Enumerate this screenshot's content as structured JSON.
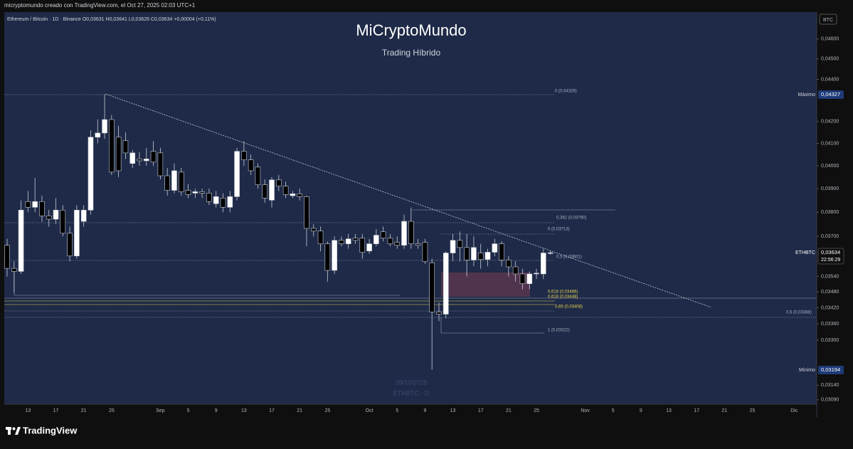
{
  "header": "micryptomundo creado con TradingView.com, el Oct 27, 2025 02:03 UTC+1",
  "footer": "TradingView",
  "chart_data": {
    "type": "candlestick",
    "symbol_line": "Ethereum / Bitcoin · 1D · Binance  O0,03631  H0,03641  L0,03626  C0,03634  +0,00004 (+0,11%)",
    "title": "MiCryptoMundo",
    "subtitle": "Trading Híbrido",
    "axis_unit": "BTC",
    "watermark": [
      "28/10/2025",
      "ETHBTC · D"
    ],
    "log_scale": true,
    "up_color": "#ffffff",
    "down_color": "#000000",
    "ylim": [
      0.03075,
      0.04735
    ],
    "yticks": [
      {
        "value": 0.046,
        "label": "0,04600"
      },
      {
        "value": 0.045,
        "label": "0,04500"
      },
      {
        "value": 0.044,
        "label": "0,04400"
      },
      {
        "value": 0.042,
        "label": "0,04200"
      },
      {
        "value": 0.041,
        "label": "0,04100"
      },
      {
        "value": 0.04,
        "label": "0,04000"
      },
      {
        "value": 0.039,
        "label": "0,03900"
      },
      {
        "value": 0.038,
        "label": "0,03800"
      },
      {
        "value": 0.037,
        "label": "0,03700"
      },
      {
        "value": 0.0354,
        "label": "0,03540"
      },
      {
        "value": 0.0348,
        "label": "0,03480"
      },
      {
        "value": 0.0342,
        "label": "0,03420"
      },
      {
        "value": 0.0336,
        "label": "0,03360"
      },
      {
        "value": 0.033,
        "label": "0,03300"
      },
      {
        "value": 0.0314,
        "label": "0,03140"
      },
      {
        "value": 0.0309,
        "label": "0,03090"
      }
    ],
    "categories": [
      null,
      null,
      null,
      "13",
      null,
      null,
      null,
      "17",
      null,
      null,
      null,
      "21",
      null,
      null,
      null,
      "25",
      null,
      null,
      null,
      null,
      null,
      null,
      "Sep",
      null,
      null,
      null,
      "5",
      null,
      null,
      null,
      "9",
      null,
      null,
      null,
      "13",
      null,
      null,
      null,
      "17",
      null,
      null,
      null,
      "21",
      null,
      null,
      null,
      "25",
      null,
      null,
      null,
      null,
      null,
      "Oct",
      null,
      null,
      null,
      "5",
      null,
      null,
      null,
      "9",
      null,
      null,
      null,
      "13",
      null,
      null,
      null,
      "17",
      null,
      null,
      null,
      "21",
      null,
      null,
      null,
      "25",
      null,
      null,
      null,
      null,
      null,
      null,
      "Nov",
      null,
      null,
      null,
      "5",
      null,
      null,
      null,
      "9",
      null,
      null,
      null,
      "13",
      null,
      null,
      null,
      "17",
      null,
      null,
      null,
      "21",
      null,
      null,
      null,
      "25",
      null,
      null,
      null,
      null,
      null,
      "Dic"
    ],
    "open": [
      0.03664,
      0.03572,
      0.0356,
      0.03845,
      0.03821,
      0.03845,
      0.03785,
      0.03771,
      0.03809,
      0.03713,
      0.03621,
      0.03762,
      0.03809,
      0.04128,
      0.04147,
      0.04209,
      0.04128,
      0.04112,
      0.0401,
      0.0403,
      0.04022,
      0.04064,
      0.04057,
      0.03956,
      0.03893,
      0.03972,
      0.03893,
      0.03881,
      0.03887,
      0.03881,
      0.03836,
      0.0386,
      0.03821,
      0.03866,
      0.04064,
      0.04026,
      0.03994,
      0.03917,
      0.03851,
      0.03938,
      0.03911,
      0.0387,
      0.03878,
      0.03866,
      0.03733,
      0.03722,
      0.0367,
      0.03564,
      0.03684,
      0.0367,
      0.03693,
      0.03693,
      0.03641,
      0.0367,
      0.03719,
      0.03693,
      0.03676,
      0.03664,
      0.03762,
      0.0367,
      0.03676,
      0.03594,
      0.03404,
      0.03396,
      0.03633,
      0.03684,
      0.03655,
      0.03605,
      0.03633,
      0.03607,
      0.03636,
      0.0367,
      0.03605,
      0.03578,
      0.0355,
      0.03512,
      0.0355,
      0.0355,
      0.03631,
      null,
      null,
      null,
      null,
      null,
      null,
      null,
      null,
      null,
      null,
      null,
      null,
      null,
      null,
      null,
      null,
      null,
      null,
      null,
      null,
      null,
      null,
      null,
      null,
      null,
      null,
      null,
      null,
      null,
      null,
      null,
      null,
      null,
      null,
      null
    ],
    "high": [
      0.0369,
      0.036,
      0.0385,
      0.0389,
      0.03947,
      0.0387,
      0.0381,
      0.0386,
      0.0383,
      0.0374,
      0.0383,
      0.0383,
      0.0416,
      0.0421,
      0.04327,
      0.0423,
      0.0418,
      0.0415,
      0.0407,
      0.0406,
      0.0408,
      0.0411,
      0.0408,
      0.0399,
      0.0401,
      0.0399,
      0.0392,
      0.039,
      0.039,
      0.039,
      0.0389,
      0.0388,
      0.0389,
      0.0408,
      0.0411,
      0.0405,
      0.0401,
      0.0394,
      0.0395,
      0.0396,
      0.0393,
      0.0389,
      0.039,
      0.0387,
      0.0375,
      0.0374,
      0.0368,
      0.037,
      0.037,
      0.0371,
      0.0371,
      0.0371,
      0.0369,
      0.0373,
      0.0374,
      0.0371,
      0.037,
      0.0379,
      0.0382,
      0.0369,
      0.0369,
      0.0361,
      0.0344,
      0.0364,
      0.0371,
      0.0372,
      0.0371,
      0.037,
      0.0367,
      0.0365,
      0.0369,
      0.0368,
      0.0362,
      0.036,
      0.0357,
      0.0356,
      0.0357,
      0.0365,
      0.03641,
      null,
      null,
      null,
      null,
      null,
      null,
      null,
      null,
      null,
      null,
      null,
      null,
      null,
      null,
      null,
      null,
      null,
      null,
      null,
      null,
      null,
      null,
      null,
      null,
      null,
      null,
      null,
      null,
      null,
      null,
      null,
      null,
      null,
      null,
      null
    ],
    "low": [
      0.0354,
      0.03478,
      0.0355,
      0.038,
      0.038,
      0.0376,
      0.0374,
      0.0375,
      0.037,
      0.036,
      0.0361,
      0.0374,
      0.0379,
      0.041,
      0.0412,
      0.0396,
      0.0395,
      0.0403,
      0.0399,
      0.04,
      0.04,
      0.04,
      0.0394,
      0.0387,
      0.0388,
      0.0387,
      0.0386,
      0.0386,
      0.0386,
      0.0383,
      0.0382,
      0.038,
      0.038,
      0.0385,
      0.04,
      0.0396,
      0.039,
      0.0384,
      0.0382,
      0.0389,
      0.0386,
      0.0386,
      0.0385,
      0.0366,
      0.037,
      0.0364,
      0.0352,
      0.0355,
      0.0366,
      0.0365,
      0.0367,
      0.0361,
      0.0363,
      0.0366,
      0.0368,
      0.0366,
      0.0365,
      0.0365,
      0.0365,
      0.0365,
      0.0359,
      0.03194,
      0.0337,
      0.0338,
      0.036,
      0.036,
      0.0354,
      0.0358,
      0.0357,
      0.0358,
      0.0362,
      0.0358,
      0.0354,
      0.0352,
      0.0349,
      0.0349,
      0.0353,
      0.0353,
      0.03626,
      null,
      null,
      null,
      null,
      null,
      null,
      null,
      null,
      null,
      null,
      null,
      null,
      null,
      null,
      null,
      null,
      null,
      null,
      null,
      null,
      null,
      null,
      null,
      null,
      null,
      null,
      null,
      null,
      null,
      null,
      null,
      null,
      null,
      null,
      null
    ],
    "close": [
      0.03572,
      0.0356,
      0.03809,
      0.03821,
      0.03845,
      0.03785,
      0.03771,
      0.03809,
      0.03713,
      0.03621,
      0.03809,
      0.03809,
      0.04128,
      0.04147,
      0.04209,
      0.03972,
      0.03978,
      0.04057,
      0.04057,
      0.04022,
      0.0403,
      0.04016,
      0.03956,
      0.03893,
      0.03978,
      0.03887,
      0.03875,
      0.03887,
      0.03881,
      0.03845,
      0.03866,
      0.03821,
      0.03866,
      0.04064,
      0.04026,
      0.03978,
      0.03917,
      0.0386,
      0.03938,
      0.03911,
      0.03875,
      0.03878,
      0.03866,
      0.03733,
      0.03722,
      0.0367,
      0.03564,
      0.03684,
      0.0367,
      0.0369,
      0.03684,
      0.03636,
      0.0367,
      0.03705,
      0.03693,
      0.0367,
      0.03664,
      0.03762,
      0.0367,
      0.03664,
      0.03599,
      0.03404,
      0.03396,
      0.03633,
      0.03684,
      0.03655,
      0.03605,
      0.03655,
      0.03607,
      0.03636,
      0.0367,
      0.03605,
      0.03578,
      0.0355,
      0.03512,
      0.0355,
      0.03553,
      0.03633,
      0.03634,
      null,
      null,
      null,
      null,
      null,
      null,
      null,
      null,
      null,
      null,
      null,
      null,
      null,
      null,
      null,
      null,
      null,
      null,
      null,
      null,
      null,
      null,
      null,
      null,
      null,
      null,
      null,
      null,
      null,
      null,
      null,
      null,
      null,
      null,
      null
    ],
    "fib_labels": [
      "0 (0,04326)",
      "0,382 (0,03760)",
      "0 (0,03713)",
      "0,5 (0,03601)",
      "0,618 (0,03466)",
      "0,618 (0,03448)",
      "0,65 (0,03408)",
      "1 (0,03322)",
      "0,5 (0,03388)"
    ],
    "axis_labels": {
      "high_name": "Máximo",
      "high_value": "0,04327",
      "last_name": "ETHBTC",
      "last_value": "0,03634",
      "countdown": "22:56:29",
      "low_name": "Mínimo",
      "low_value": "0,03194"
    }
  }
}
